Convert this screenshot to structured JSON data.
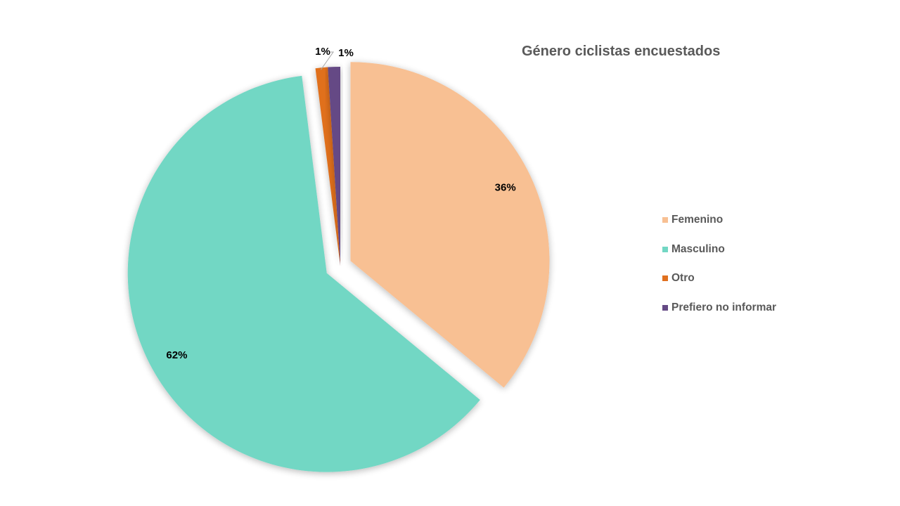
{
  "chart_data": {
    "type": "pie",
    "title": "Género ciclistas encuestados",
    "categories": [
      "Femenino",
      "Masculino",
      "Otro",
      "Prefiero no informar"
    ],
    "values": [
      36,
      62,
      1,
      1
    ],
    "data_labels": [
      "36%",
      "62%",
      "1%",
      "1%"
    ],
    "colors": [
      "#F8C093",
      "#72D7C4",
      "#E0701F",
      "#654A85"
    ],
    "exploded": true,
    "legend_position": "right"
  }
}
